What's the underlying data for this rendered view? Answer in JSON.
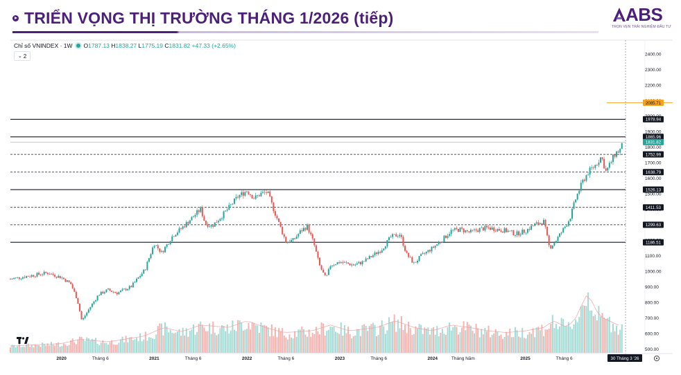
{
  "header": {
    "title": "TRIỂN VỌNG THỊ TRƯỜNG THÁNG 1/2026 (tiếp)",
    "logo_text": "ABS",
    "logo_tagline": "TRỌN VẸN TRẢI NGHIỆM ĐẦU TƯ",
    "accent_color": "#4b1f7a"
  },
  "legend": {
    "symbol": "Chỉ số VNINDEX · 1W",
    "open_label": "O",
    "open": "1787.13",
    "high_label": "H",
    "high": "1838.27",
    "low_label": "L",
    "low": "1775.19",
    "close_label": "C",
    "close": "1831.82",
    "change": "+47.33 (+2.65%)",
    "indicator_count": "2"
  },
  "chart_data": {
    "type": "candlestick",
    "ylim": [
      470,
      2480
    ],
    "y_ticks": [
      500,
      600,
      700,
      800,
      900,
      1000,
      1100,
      1200,
      1300,
      1400,
      1500,
      1600,
      1700,
      1800,
      1900,
      2000,
      2100,
      2200,
      2300,
      2400
    ],
    "x_tick_labels": [
      "2020",
      "Tháng 6",
      "2021",
      "Tháng 6",
      "2022",
      "Tháng 6",
      "2023",
      "Tháng 6",
      "2024",
      "Tháng Năm",
      "2025",
      "Tháng 6",
      "2026"
    ],
    "x_tick_years": [
      2020,
      2020.42,
      2021,
      2021.42,
      2022,
      2022.42,
      2023,
      2023.42,
      2024,
      2024.33,
      2025,
      2025.42,
      2026
    ],
    "x_range": [
      2019.45,
      2026.08
    ],
    "horizontal_levels": [
      {
        "value": 1978.94,
        "label": "1978.94",
        "style": "solid"
      },
      {
        "value": 1865.96,
        "label": "1865.96",
        "style": "solid"
      },
      {
        "value": 1752.99,
        "label": "1752.99",
        "style": "dashed"
      },
      {
        "value": 1638.79,
        "label": "1638.79",
        "style": "dashed"
      },
      {
        "value": 1526.13,
        "label": "1526.13",
        "style": "solid"
      },
      {
        "value": 1411.53,
        "label": "1411.53",
        "style": "dashed"
      },
      {
        "value": 1299.63,
        "label": "1299.63",
        "style": "dashed"
      },
      {
        "value": 1186.51,
        "label": "1186.51",
        "style": "solid"
      }
    ],
    "price_marker": {
      "value": 2085.71,
      "label": "2085.71",
      "color": "#f7a21b"
    },
    "last_price": {
      "value": 1831.82,
      "label": "1831.82",
      "color": "#26a69a"
    },
    "crosshair_date_label": "30 Tháng 3 '26",
    "price_path": [
      [
        2019.45,
        950
      ],
      [
        2019.7,
        975
      ],
      [
        2019.85,
        990
      ],
      [
        2020.0,
        960
      ],
      [
        2020.1,
        920
      ],
      [
        2020.17,
        820
      ],
      [
        2020.22,
        680
      ],
      [
        2020.3,
        760
      ],
      [
        2020.4,
        850
      ],
      [
        2020.5,
        880
      ],
      [
        2020.6,
        860
      ],
      [
        2020.75,
        900
      ],
      [
        2020.9,
        1010
      ],
      [
        2021.0,
        1180
      ],
      [
        2021.08,
        1120
      ],
      [
        2021.2,
        1230
      ],
      [
        2021.3,
        1280
      ],
      [
        2021.4,
        1340
      ],
      [
        2021.5,
        1400
      ],
      [
        2021.55,
        1310
      ],
      [
        2021.62,
        1290
      ],
      [
        2021.72,
        1350
      ],
      [
        2021.82,
        1420
      ],
      [
        2021.9,
        1480
      ],
      [
        2022.0,
        1520
      ],
      [
        2022.08,
        1470
      ],
      [
        2022.15,
        1500
      ],
      [
        2022.22,
        1510
      ],
      [
        2022.28,
        1410
      ],
      [
        2022.35,
        1300
      ],
      [
        2022.42,
        1190
      ],
      [
        2022.5,
        1200
      ],
      [
        2022.58,
        1260
      ],
      [
        2022.65,
        1290
      ],
      [
        2022.72,
        1180
      ],
      [
        2022.78,
        1040
      ],
      [
        2022.85,
        950
      ],
      [
        2022.9,
        1040
      ],
      [
        2023.0,
        1060
      ],
      [
        2023.08,
        1050
      ],
      [
        2023.15,
        1040
      ],
      [
        2023.25,
        1060
      ],
      [
        2023.35,
        1100
      ],
      [
        2023.45,
        1140
      ],
      [
        2023.55,
        1220
      ],
      [
        2023.65,
        1240
      ],
      [
        2023.72,
        1110
      ],
      [
        2023.8,
        1050
      ],
      [
        2023.88,
        1100
      ],
      [
        2024.0,
        1150
      ],
      [
        2024.1,
        1200
      ],
      [
        2024.2,
        1260
      ],
      [
        2024.3,
        1270
      ],
      [
        2024.4,
        1250
      ],
      [
        2024.5,
        1270
      ],
      [
        2024.6,
        1280
      ],
      [
        2024.7,
        1270
      ],
      [
        2024.8,
        1260
      ],
      [
        2024.9,
        1240
      ],
      [
        2025.0,
        1260
      ],
      [
        2025.1,
        1300
      ],
      [
        2025.2,
        1320
      ],
      [
        2025.26,
        1150
      ],
      [
        2025.32,
        1190
      ],
      [
        2025.4,
        1260
      ],
      [
        2025.48,
        1340
      ],
      [
        2025.55,
        1480
      ],
      [
        2025.62,
        1580
      ],
      [
        2025.68,
        1640
      ],
      [
        2025.75,
        1680
      ],
      [
        2025.82,
        1740
      ],
      [
        2025.87,
        1640
      ],
      [
        2025.92,
        1700
      ],
      [
        2025.97,
        1760
      ],
      [
        2026.02,
        1780
      ],
      [
        2026.06,
        1831.82
      ]
    ],
    "volume": {
      "ylim": [
        0,
        900
      ],
      "path": [
        [
          2019.45,
          80
        ],
        [
          2020.0,
          110
        ],
        [
          2020.2,
          160
        ],
        [
          2020.5,
          130
        ],
        [
          2020.9,
          200
        ],
        [
          2021.1,
          300
        ],
        [
          2021.3,
          250
        ],
        [
          2021.5,
          330
        ],
        [
          2021.8,
          300
        ],
        [
          2022.0,
          380
        ],
        [
          2022.2,
          300
        ],
        [
          2022.4,
          240
        ],
        [
          2022.7,
          260
        ],
        [
          2022.9,
          330
        ],
        [
          2023.1,
          260
        ],
        [
          2023.4,
          300
        ],
        [
          2023.6,
          380
        ],
        [
          2023.8,
          300
        ],
        [
          2024.0,
          260
        ],
        [
          2024.2,
          330
        ],
        [
          2024.4,
          300
        ],
        [
          2024.6,
          260
        ],
        [
          2024.8,
          240
        ],
        [
          2025.0,
          260
        ],
        [
          2025.2,
          300
        ],
        [
          2025.3,
          380
        ],
        [
          2025.45,
          300
        ],
        [
          2025.55,
          420
        ],
        [
          2025.62,
          600
        ],
        [
          2025.68,
          720
        ],
        [
          2025.72,
          600
        ],
        [
          2025.8,
          430
        ],
        [
          2025.9,
          380
        ],
        [
          2026.0,
          330
        ],
        [
          2026.06,
          300
        ]
      ]
    }
  }
}
